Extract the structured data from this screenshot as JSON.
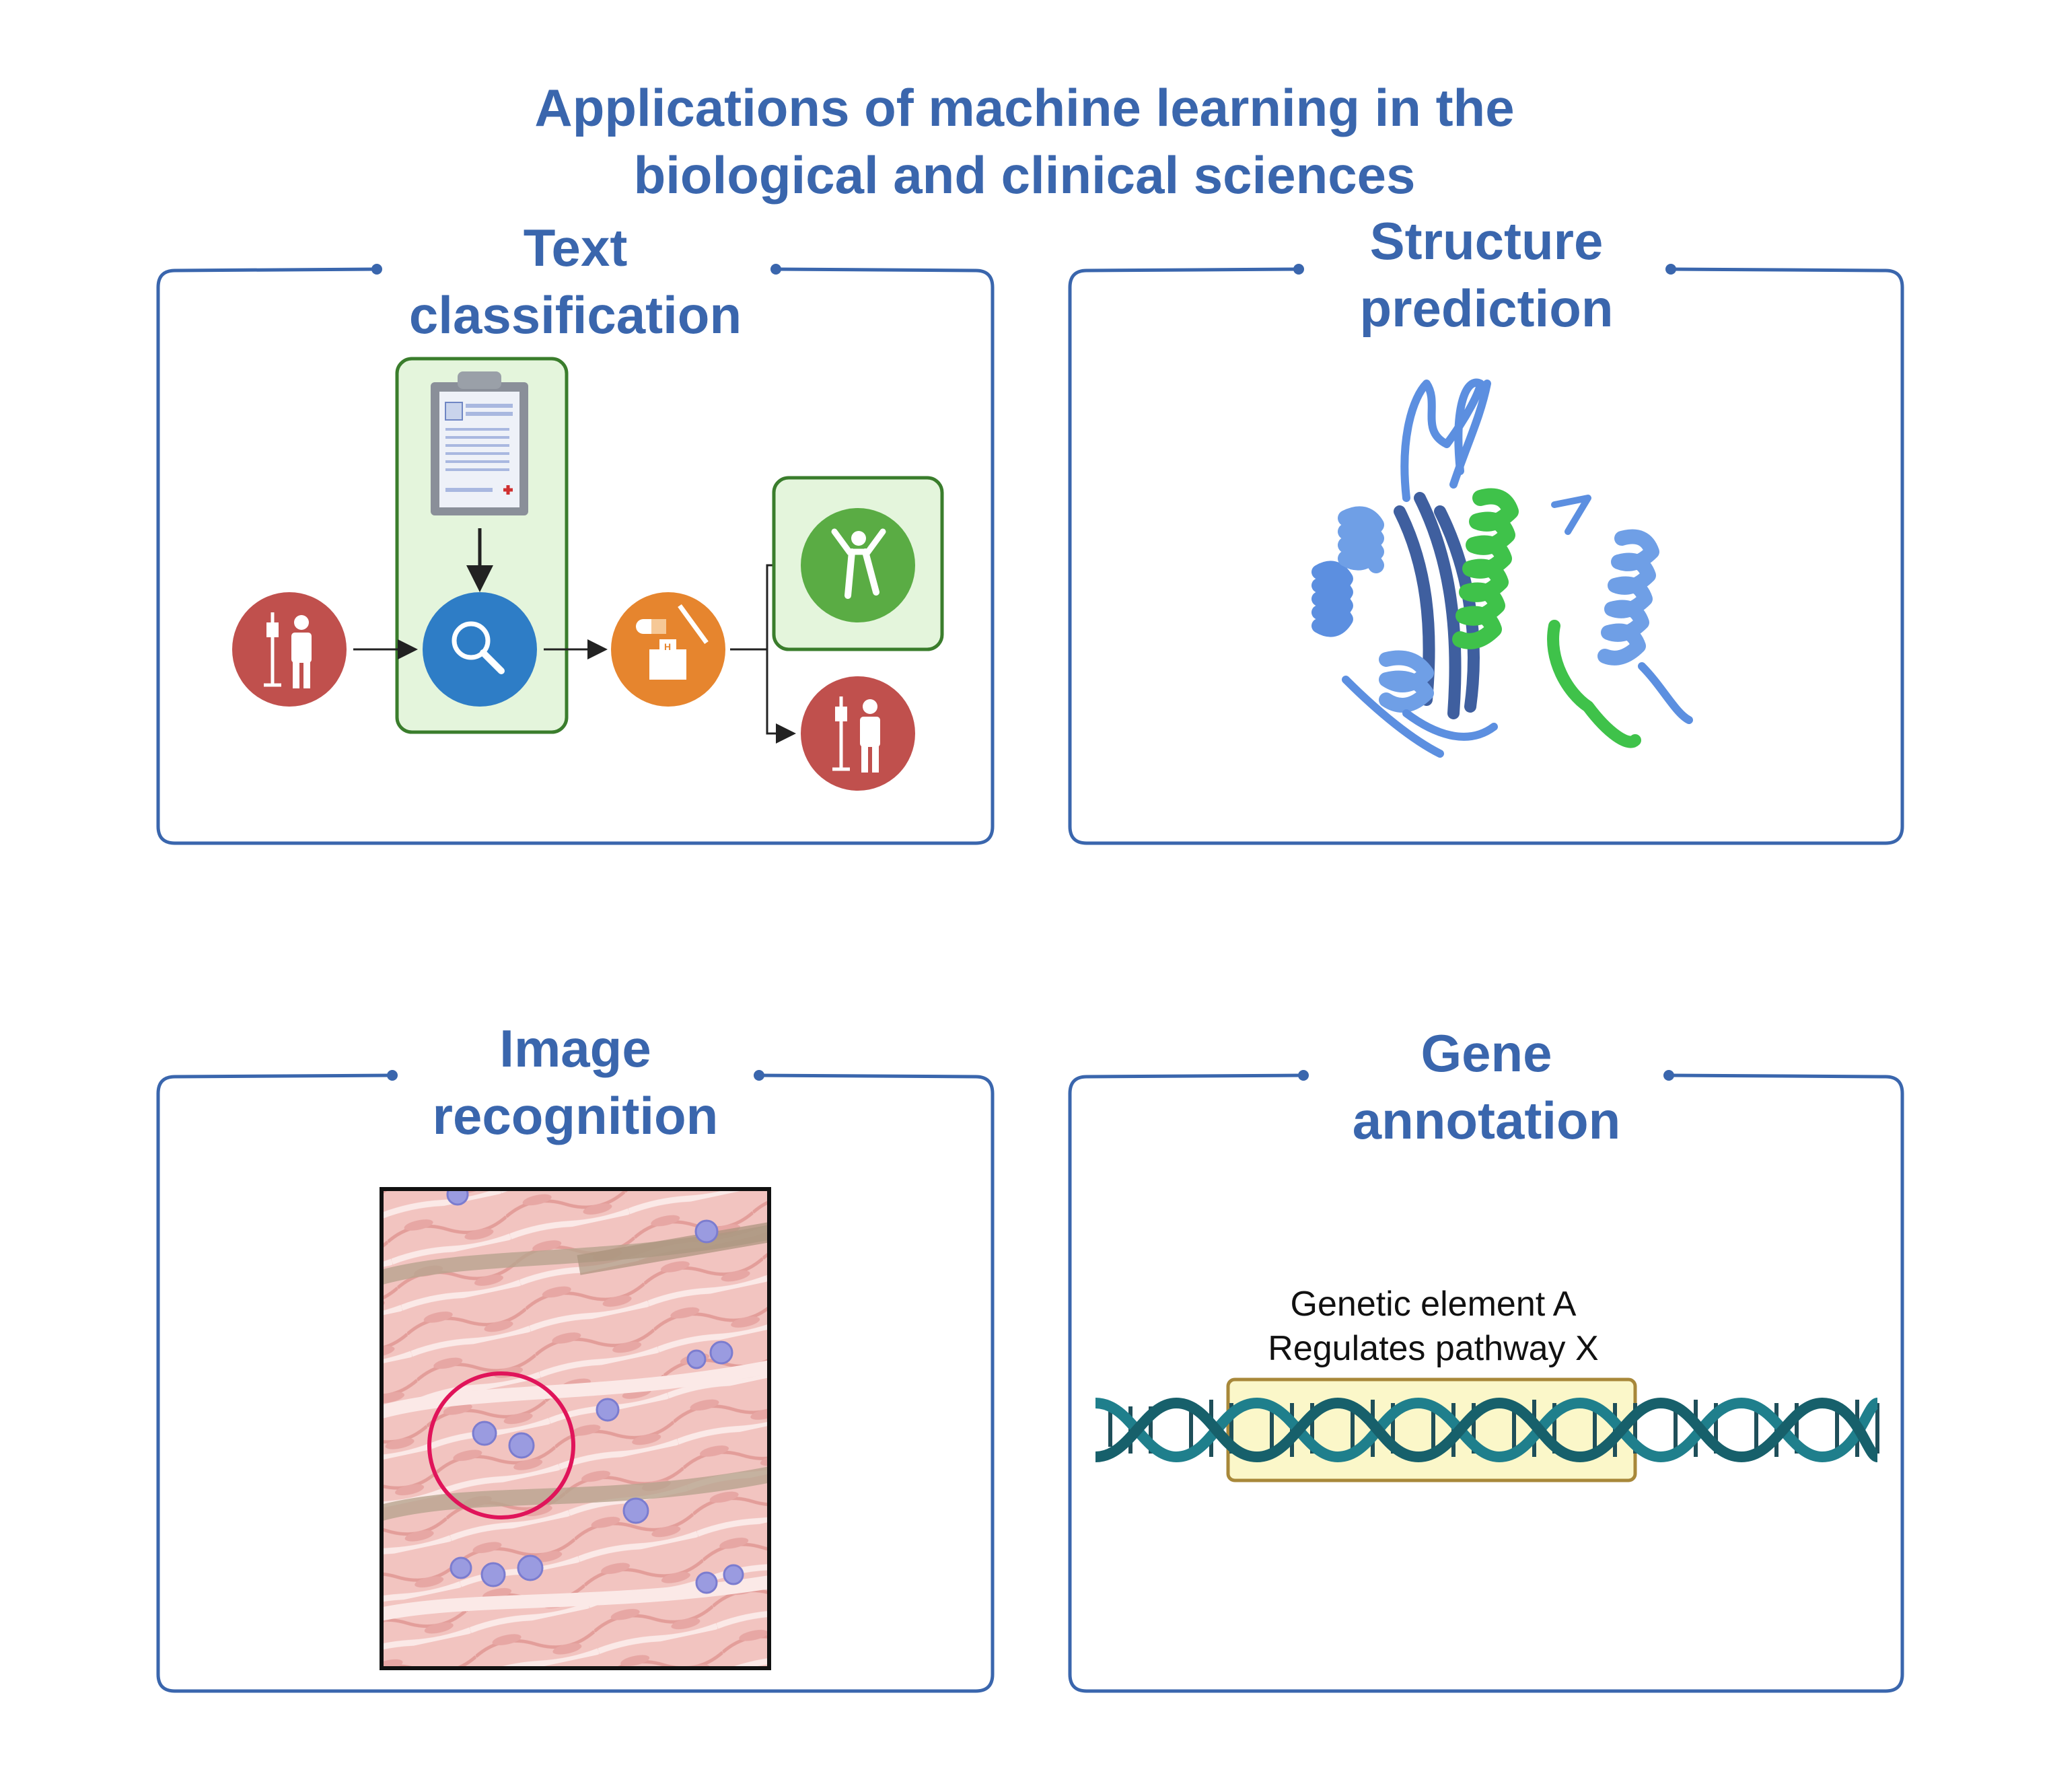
{
  "title": {
    "line1": "Applications of machine learning in the",
    "line2": "biological and clinical sciences"
  },
  "panels": [
    {
      "title_line1": "Text",
      "title_line2": "classification"
    },
    {
      "title_line1": "Structure",
      "title_line2": "prediction"
    },
    {
      "title_line1": "Image",
      "title_line2": "recognition"
    },
    {
      "title_line1": "Gene",
      "title_line2": "annotation"
    }
  ],
  "gene_annotation": {
    "label_line1": "Genetic element A",
    "label_line2": "Regulates pathway X"
  },
  "colors": {
    "frame": "#3a66ad",
    "title": "#3a66ad",
    "patient_red": "#c0504d",
    "search_blue": "#2e7dc6",
    "treatment_orange": "#e6852e",
    "recovered_green": "#5aac44",
    "highlight_box": "#e4f5dc",
    "protein_blue": "#6f9fe6",
    "protein_green": "#3fc24a",
    "dna_teal": "#1f7f8c",
    "gene_box": "#fbf7c9"
  },
  "icons": [
    "patient-iv-icon",
    "clipboard-icon",
    "magnifier-icon",
    "hospital-medicine-icon",
    "recovered-person-icon",
    "protein-structure-icon",
    "tissue-image-icon",
    "dna-helix-icon"
  ]
}
